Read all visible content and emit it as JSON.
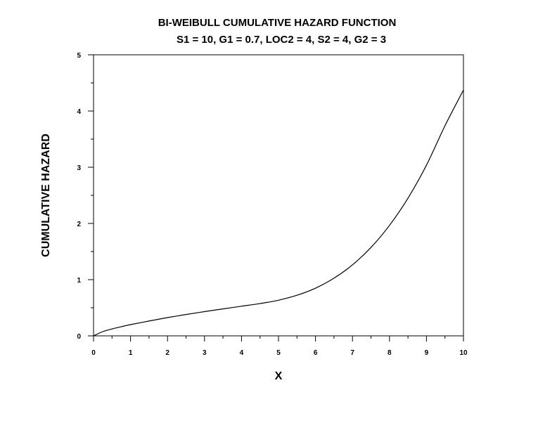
{
  "chart_data": {
    "type": "line",
    "title": "BI-WEIBULL CUMULATIVE HAZARD FUNCTION",
    "subtitle": "S1 = 10, G1 = 0.7, LOC2 = 4, S2 = 4, G2 = 3",
    "xlabel": "X",
    "ylabel": "CUMULATIVE HAZARD",
    "xlim": [
      0,
      10
    ],
    "ylim": [
      0,
      5
    ],
    "x_ticks": [
      "0",
      "1",
      "2",
      "3",
      "4",
      "5",
      "6",
      "7",
      "8",
      "9",
      "10"
    ],
    "y_ticks": [
      "0",
      "1",
      "2",
      "3",
      "4",
      "5"
    ],
    "grid": false,
    "line_color": "#000000",
    "series": [
      {
        "x": [
          0,
          0.25,
          0.5,
          0.75,
          1,
          1.5,
          2,
          2.5,
          3,
          3.5,
          4,
          4.5,
          5,
          5.5,
          6,
          6.5,
          7,
          7.5,
          8,
          8.5,
          9,
          9.5,
          10
        ],
        "y": [
          0,
          0.075,
          0.123,
          0.163,
          0.2,
          0.264,
          0.325,
          0.38,
          0.431,
          0.48,
          0.527,
          0.574,
          0.634,
          0.722,
          0.848,
          1.026,
          1.263,
          1.573,
          1.965,
          2.449,
          3.037,
          3.738,
          4.373
        ]
      }
    ]
  }
}
